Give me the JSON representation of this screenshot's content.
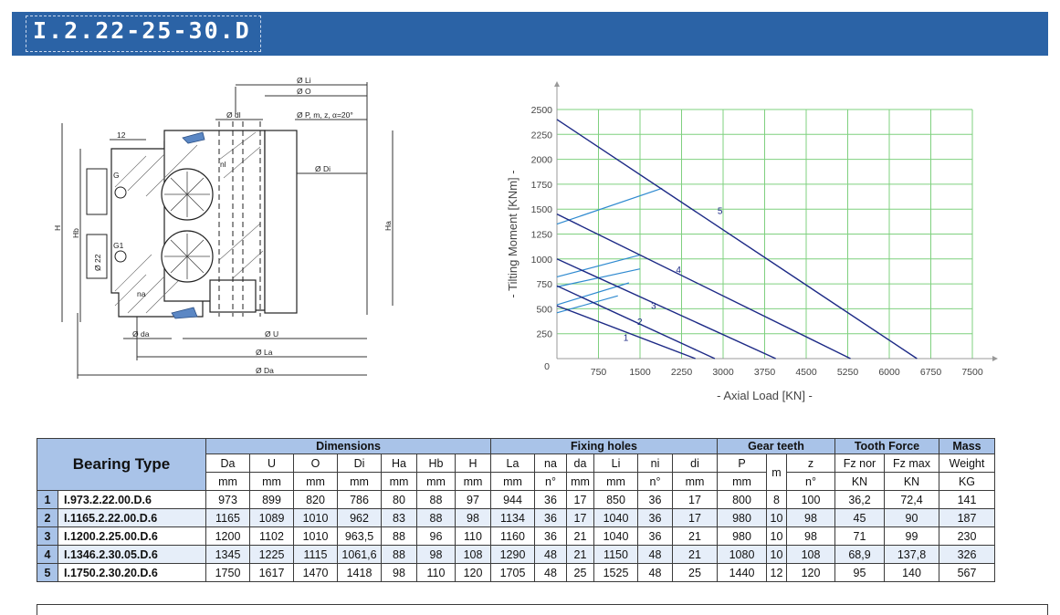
{
  "header": {
    "title": "I.2.22-25-30.D"
  },
  "drawing": {
    "labels": {
      "li": "Ø Li",
      "o": "Ø O",
      "dl": "Ø dl",
      "p": "Ø P, m, z, α=20°",
      "di": "Ø Di",
      "nl": "nl",
      "twelve": "12",
      "g": "G",
      "g1": "G1",
      "h": "H",
      "hb": "Hb",
      "d22": "Ø 22",
      "na": "na",
      "ha": "Ha",
      "da_small": "Ø da",
      "u": "Ø U",
      "la": "Ø La",
      "da": "Ø Da"
    }
  },
  "chart_data": {
    "type": "line",
    "xlabel": "-  Axial Load  [KN]  -",
    "ylabel": "-  Tilting Moment  [KNm]  -",
    "xlim": [
      0,
      7500
    ],
    "ylim": [
      0,
      2500
    ],
    "xticks": [
      750,
      1500,
      2250,
      3000,
      3750,
      4500,
      5250,
      6000,
      6750,
      7500
    ],
    "yticks": [
      250,
      500,
      750,
      1000,
      1250,
      1500,
      1750,
      2000,
      2250,
      2500
    ],
    "origin_label": "0",
    "grid": true,
    "series": [
      {
        "name": "1",
        "color": "#1d2a86",
        "points": [
          [
            0,
            530
          ],
          [
            2500,
            0
          ]
        ]
      },
      {
        "name": "2",
        "color": "#1d2a86",
        "points": [
          [
            0,
            730
          ],
          [
            2850,
            0
          ]
        ]
      },
      {
        "name": "3",
        "color": "#1d2a86",
        "points": [
          [
            0,
            1000
          ],
          [
            3950,
            0
          ]
        ]
      },
      {
        "name": "4",
        "color": "#1d2a86",
        "points": [
          [
            0,
            1450
          ],
          [
            5300,
            0
          ]
        ]
      },
      {
        "name": "5",
        "color": "#1d2a86",
        "points": [
          [
            0,
            2400
          ],
          [
            6500,
            0
          ]
        ]
      }
    ],
    "bolt_lines": [
      {
        "color": "#2f8ad0",
        "points": [
          [
            0,
            460
          ],
          [
            1100,
            630
          ]
        ]
      },
      {
        "color": "#2f8ad0",
        "points": [
          [
            0,
            540
          ],
          [
            1300,
            760
          ]
        ]
      },
      {
        "color": "#2f8ad0",
        "points": [
          [
            0,
            720
          ],
          [
            1500,
            900
          ]
        ]
      },
      {
        "color": "#2f8ad0",
        "points": [
          [
            0,
            820
          ],
          [
            1500,
            1040
          ]
        ]
      },
      {
        "color": "#2f8ad0",
        "points": [
          [
            0,
            1350
          ],
          [
            1900,
            1710
          ]
        ]
      }
    ],
    "series_labels": [
      {
        "text": "1",
        "x": 1200,
        "y": 180
      },
      {
        "text": "2",
        "x": 1450,
        "y": 340
      },
      {
        "text": "3",
        "x": 1700,
        "y": 500
      },
      {
        "text": "4",
        "x": 2150,
        "y": 860
      },
      {
        "text": "5",
        "x": 2900,
        "y": 1450
      }
    ]
  },
  "table": {
    "bearing_type": "Bearing Type",
    "groups": [
      {
        "label": "Dimensions",
        "span": 7
      },
      {
        "label": "Fixing holes",
        "span": 6
      },
      {
        "label": "Gear teeth",
        "span": 3
      },
      {
        "label": "Tooth Force",
        "span": 2
      },
      {
        "label": "Mass",
        "span": 1
      }
    ],
    "sub_top": [
      "Da",
      "U",
      "O",
      "Di",
      "Ha",
      "Hb",
      "H",
      "La",
      "na",
      "da",
      "Li",
      "ni",
      "di",
      "P",
      "m",
      "z",
      "Fz nor",
      "Fz max",
      "Weight"
    ],
    "sub_bottom": [
      "mm",
      "mm",
      "mm",
      "mm",
      "mm",
      "mm",
      "mm",
      "mm",
      "n°",
      "mm",
      "mm",
      "n°",
      "mm",
      "mm",
      "",
      "n°",
      "KN",
      "KN",
      "KG"
    ],
    "rows": [
      {
        "n": "1",
        "type": "I.973.2.22.00.D.6",
        "values": [
          "973",
          "899",
          "820",
          "786",
          "80",
          "88",
          "97",
          "944",
          "36",
          "17",
          "850",
          "36",
          "17",
          "800",
          "8",
          "100",
          "36,2",
          "72,4",
          "141"
        ]
      },
      {
        "n": "2",
        "type": "I.1165.2.22.00.D.6",
        "values": [
          "1165",
          "1089",
          "1010",
          "962",
          "83",
          "88",
          "98",
          "1134",
          "36",
          "17",
          "1040",
          "36",
          "17",
          "980",
          "10",
          "98",
          "45",
          "90",
          "187"
        ]
      },
      {
        "n": "3",
        "type": "I.1200.2.25.00.D.6",
        "values": [
          "1200",
          "1102",
          "1010",
          "963,5",
          "88",
          "96",
          "110",
          "1160",
          "36",
          "21",
          "1040",
          "36",
          "21",
          "980",
          "10",
          "98",
          "71",
          "99",
          "230"
        ]
      },
      {
        "n": "4",
        "type": "I.1346.2.30.05.D.6",
        "values": [
          "1345",
          "1225",
          "1115",
          "1061,6",
          "88",
          "98",
          "108",
          "1290",
          "48",
          "21",
          "1150",
          "48",
          "21",
          "1080",
          "10",
          "108",
          "68,9",
          "137,8",
          "326"
        ]
      },
      {
        "n": "5",
        "type": "I.1750.2.30.20.D.6",
        "values": [
          "1750",
          "1617",
          "1470",
          "1418",
          "98",
          "110",
          "120",
          "1705",
          "48",
          "25",
          "1525",
          "48",
          "25",
          "1440",
          "12",
          "120",
          "95",
          "140",
          "567"
        ]
      }
    ]
  }
}
